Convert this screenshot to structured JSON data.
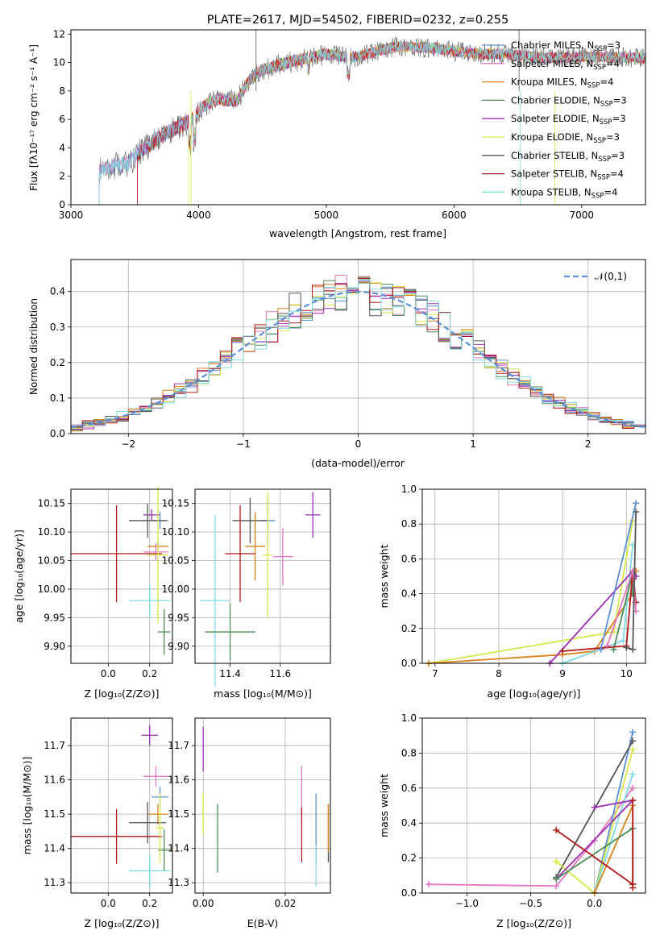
{
  "chart_data": [
    {
      "type": "line",
      "title": "PLATE=2617, MJD=54502, FIBERID=0232, z=0.255",
      "xlabel": "wavelength [Angstrom, rest frame]",
      "ylabel": "Flux [fλ10⁻¹⁷ erg cm⁻² s⁻¹ A⁻¹]",
      "xlim": [
        3000,
        7500
      ],
      "ylim": [
        0,
        12.3
      ],
      "xticks": [
        "3000",
        "4000",
        "5000",
        "6000",
        "7000"
      ],
      "yticks": [
        "0",
        "2",
        "4",
        "6",
        "8",
        "10",
        "12"
      ],
      "grid": false,
      "legend": "upper-right",
      "spectrum_anchors": {
        "x": [
          3220,
          3300,
          3450,
          3550,
          3700,
          3850,
          3950,
          4050,
          4150,
          4300,
          4400,
          4500,
          4700,
          4900,
          5000,
          5150,
          5250,
          5400,
          5550,
          5700,
          5850,
          6000,
          6200,
          6400,
          6600,
          6800,
          7000,
          7200,
          7500
        ],
        "y": [
          2.3,
          2.7,
          2.9,
          3.8,
          4.8,
          5.5,
          6.0,
          7.0,
          7.4,
          7.3,
          8.8,
          9.5,
          10.0,
          10.4,
          10.6,
          10.4,
          10.4,
          10.8,
          11.1,
          11.1,
          11.0,
          10.8,
          10.6,
          10.6,
          10.4,
          10.3,
          10.4,
          10.4,
          10.3
        ]
      },
      "series": [
        {
          "name": "Chabrier MILES, N",
          "sub": "SSP",
          "suffix": "=3",
          "color": "#5b8fd6"
        },
        {
          "name": "Salpeter MILES, N",
          "sub": "SSP",
          "suffix": "=4",
          "color": "#e377c2"
        },
        {
          "name": "Kroupa MILES, N",
          "sub": "SSP",
          "suffix": "=4",
          "color": "#d9821e"
        },
        {
          "name": "Chabrier ELODIE, N",
          "sub": "SSP",
          "suffix": "=3",
          "color": "#4c8c5a"
        },
        {
          "name": "Salpeter ELODIE, N",
          "sub": "SSP",
          "suffix": "=3",
          "color": "#9b30b5"
        },
        {
          "name": "Kroupa ELODIE, N",
          "sub": "SSP",
          "suffix": "=3",
          "color": "#d6e84a"
        },
        {
          "name": "Chabrier STELIB, N",
          "sub": "SSP",
          "suffix": "=3",
          "color": "#555555"
        },
        {
          "name": "Salpeter STELIB, N",
          "sub": "SSP",
          "suffix": "=4",
          "color": "#b01a1a"
        },
        {
          "name": "Kroupa STELIB, N",
          "sub": "SSP",
          "suffix": "=4",
          "color": "#7fdbe0"
        }
      ]
    },
    {
      "type": "bar",
      "xlabel": "(data-model)/error",
      "ylabel": "Normed distribution",
      "xlim": [
        -2.5,
        2.5
      ],
      "ylim": [
        0,
        0.49
      ],
      "xticks": [
        "−2",
        "−1",
        "0",
        "1",
        "2"
      ],
      "yticks": [
        "0.0",
        "0.1",
        "0.2",
        "0.3",
        "0.4"
      ],
      "grid": true,
      "legend": "upper-right",
      "gaussian_label": "𝒩(0,1)",
      "gaussian_color": "#5b8fd6",
      "bin_width": 0.1
    },
    {
      "type": "scatter",
      "xlabel": "Z [log₁₀(Z/Z⊙)]",
      "ylabel": "age  [log₁₀(age/yr)]",
      "xlim": [
        -0.18,
        0.31
      ],
      "ylim": [
        9.87,
        10.175
      ],
      "xticks": [
        {
          "v": 0.0,
          "t": "0.0"
        },
        {
          "v": 0.2,
          "t": "0.2"
        }
      ],
      "yticks": [
        {
          "v": 9.9,
          "t": "9.90"
        },
        {
          "v": 9.95,
          "t": "9.95"
        },
        {
          "v": 10.0,
          "t": "10.00"
        },
        {
          "v": 10.05,
          "t": "10.05"
        },
        {
          "v": 10.1,
          "t": "10.10"
        },
        {
          "v": 10.15,
          "t": "10.15"
        }
      ],
      "points": [
        {
          "x": 0.21,
          "y": 10.13,
          "xerr": 0.04,
          "yerr": 0.01,
          "color": "#9b30b5"
        },
        {
          "x": 0.25,
          "y": 10.12,
          "xerr": 0.04,
          "yerr": 0.015,
          "color": "#5b8fd6"
        },
        {
          "x": 0.19,
          "y": 10.12,
          "xerr": 0.09,
          "yerr": 0.03,
          "color": "#555555"
        },
        {
          "x": 0.24,
          "y": 10.075,
          "xerr": 0.05,
          "yerr": 0.01,
          "color": "#d9821e"
        },
        {
          "x": 0.23,
          "y": 10.065,
          "xerr": 0.06,
          "yerr": 0.015,
          "color": "#e377c2"
        },
        {
          "x": 0.04,
          "y": 10.062,
          "xerr": 0.22,
          "yerr": 0.085,
          "color": "#b01a1a"
        },
        {
          "x": 0.24,
          "y": 10.06,
          "xerr": 0.05,
          "yerr": 0.12,
          "color": "#d6e84a"
        },
        {
          "x": 0.2,
          "y": 9.98,
          "xerr": 0.1,
          "yerr": 0.03,
          "color": "#7fdbe0"
        },
        {
          "x": 0.27,
          "y": 9.925,
          "xerr": 0.03,
          "yerr": 0.04,
          "color": "#4c8c5a"
        }
      ]
    },
    {
      "type": "scatter",
      "xlabel": "mass [log₁₀(M/M⊙)]",
      "ylabel": "",
      "xlim": [
        11.26,
        11.8
      ],
      "ylim": [
        9.87,
        10.175
      ],
      "xticks": [
        {
          "v": 11.4,
          "t": "11.4"
        },
        {
          "v": 11.6,
          "t": "11.6"
        }
      ],
      "yticks": [
        {
          "v": 9.9,
          "t": "9.90"
        },
        {
          "v": 9.95,
          "t": "9.95"
        },
        {
          "v": 10.0,
          "t": "10.00"
        },
        {
          "v": 10.05,
          "t": "10.05"
        },
        {
          "v": 10.1,
          "t": "10.10"
        },
        {
          "v": 10.15,
          "t": "10.15"
        }
      ],
      "points": [
        {
          "x": 11.73,
          "y": 10.13,
          "xerr": 0.03,
          "yerr": 0.04,
          "color": "#9b30b5"
        },
        {
          "x": 11.55,
          "y": 10.12,
          "xerr": 0.03,
          "yerr": 0.04,
          "color": "#5b8fd6"
        },
        {
          "x": 11.48,
          "y": 10.12,
          "xerr": 0.07,
          "yerr": 0.04,
          "color": "#555555"
        },
        {
          "x": 11.5,
          "y": 10.075,
          "xerr": 0.04,
          "yerr": 0.06,
          "color": "#d9821e"
        },
        {
          "x": 11.61,
          "y": 10.057,
          "xerr": 0.04,
          "yerr": 0.05,
          "color": "#e377c2"
        },
        {
          "x": 11.44,
          "y": 10.062,
          "xerr": 0.06,
          "yerr": 0.085,
          "color": "#b01a1a"
        },
        {
          "x": 11.55,
          "y": 10.06,
          "xerr": 0.02,
          "yerr": 0.11,
          "color": "#d6e84a"
        },
        {
          "x": 11.34,
          "y": 9.98,
          "xerr": 0.06,
          "yerr": 0.15,
          "color": "#7fdbe0"
        },
        {
          "x": 11.4,
          "y": 9.925,
          "xerr": 0.1,
          "yerr": 0.05,
          "color": "#4c8c5a"
        }
      ]
    },
    {
      "type": "line",
      "xlabel": "age  [log₁₀(age/yr)]",
      "ylabel": "mass weight",
      "xlim": [
        6.8,
        10.3
      ],
      "ylim": [
        0,
        1.0
      ],
      "xticks": [
        {
          "v": 7,
          "t": "7"
        },
        {
          "v": 8,
          "t": "8"
        },
        {
          "v": 9,
          "t": "9"
        },
        {
          "v": 10,
          "t": "10"
        }
      ],
      "yticks": [
        {
          "v": 0,
          "t": "0.0"
        },
        {
          "v": 0.2,
          "t": "0.2"
        },
        {
          "v": 0.4,
          "t": "0.4"
        },
        {
          "v": 0.6,
          "t": "0.6"
        },
        {
          "v": 0.8,
          "t": "0.8"
        },
        {
          "v": 1.0,
          "t": "1.0"
        }
      ],
      "series": [
        {
          "color": "#d6e84a",
          "x": [
            6.9,
            9.8,
            10.1
          ],
          "y": [
            0.0,
            0.18,
            0.82
          ]
        },
        {
          "color": "#d9821e",
          "x": [
            6.9,
            9.0,
            9.5,
            10.1,
            10.15
          ],
          "y": [
            0.0,
            0.05,
            0.07,
            0.4,
            0.53
          ]
        },
        {
          "color": "#7fdbe0",
          "x": [
            9.0,
            9.95,
            10.1
          ],
          "y": [
            0.0,
            0.13,
            0.68
          ]
        },
        {
          "color": "#9b30b5",
          "x": [
            8.8,
            10.1,
            10.15
          ],
          "y": [
            0.0,
            0.53,
            0.5
          ]
        },
        {
          "color": "#4c8c5a",
          "x": [
            9.8,
            10.1,
            10.1
          ],
          "y": [
            0.08,
            0.52,
            0.4
          ]
        },
        {
          "color": "#b01a1a",
          "x": [
            9.0,
            10.0,
            10.1,
            10.15
          ],
          "y": [
            0.07,
            0.1,
            0.53,
            0.35
          ]
        },
        {
          "color": "#e377c2",
          "x": [
            9.7,
            10.1,
            10.15
          ],
          "y": [
            0.1,
            0.53,
            0.3
          ]
        },
        {
          "color": "#555555",
          "x": [
            10.0,
            10.1,
            10.15
          ],
          "y": [
            0.09,
            0.08,
            0.87
          ]
        },
        {
          "color": "#5b8fd6",
          "x": [
            9.6,
            10.15
          ],
          "y": [
            0.08,
            0.92
          ]
        }
      ]
    },
    {
      "type": "scatter",
      "xlabel": "Z [log₁₀(Z/Z⊙)]",
      "ylabel": "mass [log₁₀(M/M⊙)]",
      "xlim": [
        -0.18,
        0.31
      ],
      "ylim": [
        11.27,
        11.78
      ],
      "xticks": [
        {
          "v": 0.0,
          "t": "0.0"
        },
        {
          "v": 0.2,
          "t": "0.2"
        }
      ],
      "yticks": [
        {
          "v": 11.3,
          "t": "11.3"
        },
        {
          "v": 11.4,
          "t": "11.4"
        },
        {
          "v": 11.5,
          "t": "11.5"
        },
        {
          "v": 11.6,
          "t": "11.6"
        },
        {
          "v": 11.7,
          "t": "11.7"
        }
      ],
      "points": [
        {
          "x": 0.2,
          "y": 11.73,
          "xerr": 0.04,
          "yerr": 0.03,
          "color": "#9b30b5"
        },
        {
          "x": 0.23,
          "y": 11.61,
          "xerr": 0.06,
          "yerr": 0.03,
          "color": "#e377c2"
        },
        {
          "x": 0.25,
          "y": 11.55,
          "xerr": 0.04,
          "yerr": 0.03,
          "color": "#5b8fd6"
        },
        {
          "x": 0.24,
          "y": 11.5,
          "xerr": 0.05,
          "yerr": 0.03,
          "color": "#d9821e"
        },
        {
          "x": 0.19,
          "y": 11.475,
          "xerr": 0.09,
          "yerr": 0.06,
          "color": "#555555"
        },
        {
          "x": 0.04,
          "y": 11.435,
          "xerr": 0.22,
          "yerr": 0.08,
          "color": "#b01a1a"
        },
        {
          "x": 0.27,
          "y": 11.395,
          "xerr": 0.03,
          "yerr": 0.06,
          "color": "#4c8c5a"
        },
        {
          "x": 0.25,
          "y": 11.46,
          "xerr": 0.02,
          "yerr": 0.1,
          "color": "#d6e84a"
        },
        {
          "x": 0.2,
          "y": 11.335,
          "xerr": 0.1,
          "yerr": 0.05,
          "color": "#7fdbe0"
        }
      ]
    },
    {
      "type": "scatter",
      "xlabel": "E(B-V)",
      "ylabel": "",
      "xlim": [
        -0.002,
        0.031
      ],
      "ylim": [
        11.27,
        11.78
      ],
      "xticks": [
        {
          "v": 0.0,
          "t": "0.00"
        },
        {
          "v": 0.02,
          "t": "0.02"
        }
      ],
      "yticks": [
        {
          "v": 11.3,
          "t": "11.3"
        },
        {
          "v": 11.4,
          "t": "11.4"
        },
        {
          "v": 11.5,
          "t": "11.5"
        },
        {
          "v": 11.6,
          "t": "11.6"
        },
        {
          "v": 11.7,
          "t": "11.7"
        }
      ],
      "points": [
        {
          "x": 0.0,
          "y": 11.69,
          "xerr": 0,
          "yerr": 0.065,
          "color": "#9b30b5"
        },
        {
          "x": 0.0,
          "y": 11.5,
          "xerr": 0,
          "yerr": 0.06,
          "color": "#d6e84a"
        },
        {
          "x": 0.0035,
          "y": 11.43,
          "xerr": 0,
          "yerr": 0.1,
          "color": "#4c8c5a"
        },
        {
          "x": 0.024,
          "y": 11.56,
          "xerr": 0,
          "yerr": 0.08,
          "color": "#e377c2"
        },
        {
          "x": 0.024,
          "y": 11.44,
          "xerr": 0,
          "yerr": 0.08,
          "color": "#b01a1a"
        },
        {
          "x": 0.0275,
          "y": 11.46,
          "xerr": 0,
          "yerr": 0.1,
          "color": "#5b8fd6"
        },
        {
          "x": 0.0275,
          "y": 11.35,
          "xerr": 0,
          "yerr": 0.06,
          "color": "#7fdbe0"
        },
        {
          "x": 0.0305,
          "y": 11.445,
          "xerr": 0,
          "yerr": 0.085,
          "color": "#555555"
        },
        {
          "x": 0.0305,
          "y": 11.46,
          "xerr": 0,
          "yerr": 0.07,
          "color": "#d9821e"
        }
      ]
    },
    {
      "type": "line",
      "xlabel": "Z [log₁₀(Z/Z⊙)]",
      "ylabel": "mass weight",
      "xlim": [
        -1.35,
        0.4
      ],
      "ylim": [
        0,
        1.0
      ],
      "xticks": [
        {
          "v": -1.0,
          "t": "−1.0"
        },
        {
          "v": -0.5,
          "t": "−0.5"
        },
        {
          "v": 0.0,
          "t": "0.0"
        }
      ],
      "yticks": [
        {
          "v": 0,
          "t": "0.0"
        },
        {
          "v": 0.2,
          "t": "0.2"
        },
        {
          "v": 0.4,
          "t": "0.4"
        },
        {
          "v": 0.6,
          "t": "0.6"
        },
        {
          "v": 0.8,
          "t": "0.8"
        },
        {
          "v": 1.0,
          "t": "1.0"
        }
      ],
      "series": [
        {
          "color": "#e377c2",
          "x": [
            -1.3,
            -0.3,
            0.0,
            0.3
          ],
          "y": [
            0.05,
            0.04,
            0.3,
            0.6
          ]
        },
        {
          "color": "#5b8fd6",
          "x": [
            0.0,
            0.3
          ],
          "y": [
            0.0,
            0.92
          ]
        },
        {
          "color": "#555555",
          "x": [
            -0.3,
            0.3
          ],
          "y": [
            0.09,
            0.87
          ]
        },
        {
          "color": "#d6e84a",
          "x": [
            -0.3,
            0.0,
            0.3
          ],
          "y": [
            0.18,
            0.0,
            0.82
          ]
        },
        {
          "color": "#7fdbe0",
          "x": [
            0.0,
            0.3
          ],
          "y": [
            0.0,
            0.68
          ]
        },
        {
          "color": "#9b30b5",
          "x": [
            0.0,
            0.3,
            -0.3
          ],
          "y": [
            0.49,
            0.53,
            0.08
          ]
        },
        {
          "color": "#d9821e",
          "x": [
            0.0,
            0.3,
            0.3
          ],
          "y": [
            0.0,
            0.5,
            0.05
          ]
        },
        {
          "color": "#4c8c5a",
          "x": [
            -0.3,
            0.3,
            0.3
          ],
          "y": [
            0.08,
            0.37,
            0.05
          ]
        },
        {
          "color": "#b01a1a",
          "x": [
            -0.3,
            0.3,
            0.3,
            0.3
          ],
          "y": [
            0.36,
            0.05,
            0.53,
            0.03
          ]
        }
      ]
    }
  ]
}
